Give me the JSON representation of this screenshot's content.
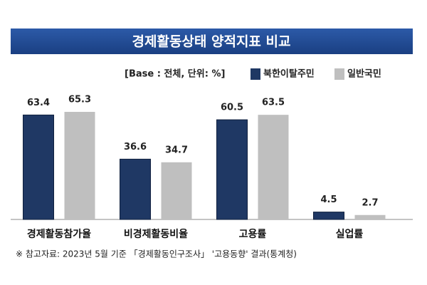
{
  "chart_data": {
    "type": "bar",
    "title": "경제활동상태 양적지표 비교",
    "subtitle": "[Base : 전체, 단위: %]",
    "categories": [
      "경제활동참가율",
      "비경제활동비율",
      "고용률",
      "실업률"
    ],
    "series": [
      {
        "name": "북한이탈주민",
        "color": "#1f3864",
        "values": [
          63.4,
          36.6,
          60.5,
          4.5
        ]
      },
      {
        "name": "일반국민",
        "color": "#bfbfbf",
        "values": [
          65.3,
          34.7,
          63.5,
          2.7
        ]
      }
    ],
    "note": "※ 참고자료: 2023년 5월 기준 「경제활동인구조사」 '고용동향' 결과(통계청)"
  }
}
